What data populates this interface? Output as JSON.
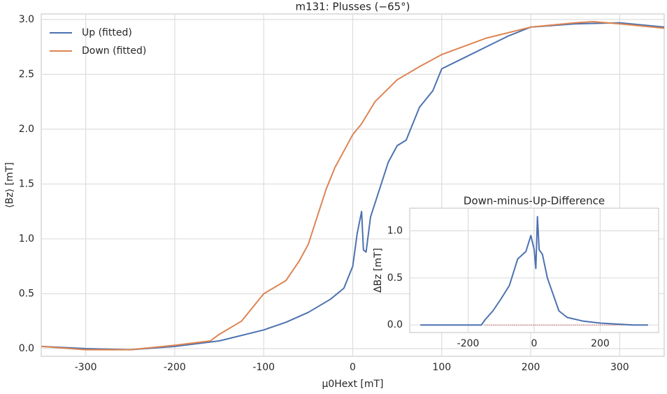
{
  "chart_data": [
    {
      "type": "line",
      "title": "m131: Plusses (−65°)",
      "x_label": "μ0Hext [mT]",
      "y_label": "⟨Bz⟩ [mT]",
      "xlim": [
        -350,
        350
      ],
      "ylim": [
        -0.07,
        3.05
      ],
      "xticks": [
        -300,
        -200,
        -100,
        0,
        100,
        200,
        300
      ],
      "yticks": [
        {
          "value": 0,
          "label": "0.0"
        },
        0.5,
        {
          "value": 1,
          "label": "1.0"
        },
        1.5,
        {
          "value": 2,
          "label": "2.0"
        },
        2.5,
        {
          "value": 3,
          "label": "3.0"
        }
      ],
      "grid": true,
      "legend": "upper left",
      "series": [
        {
          "name": "Up (fitted)",
          "color": "#4c72b0",
          "x": [
            -350,
            -300,
            -250,
            -200,
            -150,
            -100,
            -75,
            -50,
            -25,
            -10,
            0,
            5,
            10,
            12,
            15,
            20,
            30,
            40,
            50,
            60,
            75,
            90,
            100,
            125,
            150,
            175,
            200,
            250,
            300,
            350
          ],
          "values": [
            0.02,
            0.0,
            -0.01,
            0.02,
            0.07,
            0.17,
            0.24,
            0.33,
            0.45,
            0.55,
            0.75,
            1.05,
            1.25,
            0.9,
            0.88,
            1.2,
            1.45,
            1.7,
            1.85,
            1.9,
            2.2,
            2.35,
            2.55,
            2.65,
            2.75,
            2.85,
            2.93,
            2.96,
            2.97,
            2.93
          ]
        },
        {
          "name": "Down (fitted)",
          "color": "#dd8452",
          "x": [
            -350,
            -300,
            -250,
            -200,
            -160,
            -150,
            -125,
            -100,
            -75,
            -60,
            -50,
            -40,
            -30,
            -20,
            -10,
            0,
            10,
            25,
            50,
            75,
            100,
            150,
            200,
            250,
            270,
            300,
            350
          ],
          "values": [
            0.02,
            -0.01,
            -0.01,
            0.03,
            0.07,
            0.13,
            0.25,
            0.5,
            0.62,
            0.8,
            0.95,
            1.2,
            1.45,
            1.65,
            1.8,
            1.95,
            2.05,
            2.25,
            2.45,
            2.57,
            2.68,
            2.83,
            2.93,
            2.97,
            2.98,
            2.96,
            2.92
          ]
        }
      ]
    },
    {
      "type": "line",
      "title": "Down-minus-Up-Difference",
      "y_label": "ΔBz [mT]",
      "xlim": [
        -377,
        377
      ],
      "ylim": [
        -0.08,
        1.24
      ],
      "xticks": [
        -200,
        0,
        200
      ],
      "yticks": [
        {
          "value": 0,
          "label": "0.0"
        },
        0.5,
        {
          "value": 1,
          "label": "1.0"
        }
      ],
      "grid": true,
      "hline": 0,
      "hline_color": "#c44e52",
      "series": [
        {
          "color": "#4c72b0",
          "x": [
            -345,
            -300,
            -250,
            -200,
            -160,
            -150,
            -125,
            -100,
            -75,
            -50,
            -25,
            -10,
            0,
            5,
            10,
            15,
            25,
            40,
            50,
            75,
            100,
            150,
            200,
            250,
            300,
            345
          ],
          "values": [
            0.0,
            0.0,
            0.0,
            0.0,
            0.0,
            0.05,
            0.15,
            0.28,
            0.42,
            0.7,
            0.78,
            0.95,
            0.8,
            0.6,
            1.15,
            0.8,
            0.75,
            0.5,
            0.4,
            0.15,
            0.08,
            0.04,
            0.02,
            0.01,
            0.0,
            0.0
          ]
        }
      ]
    }
  ]
}
